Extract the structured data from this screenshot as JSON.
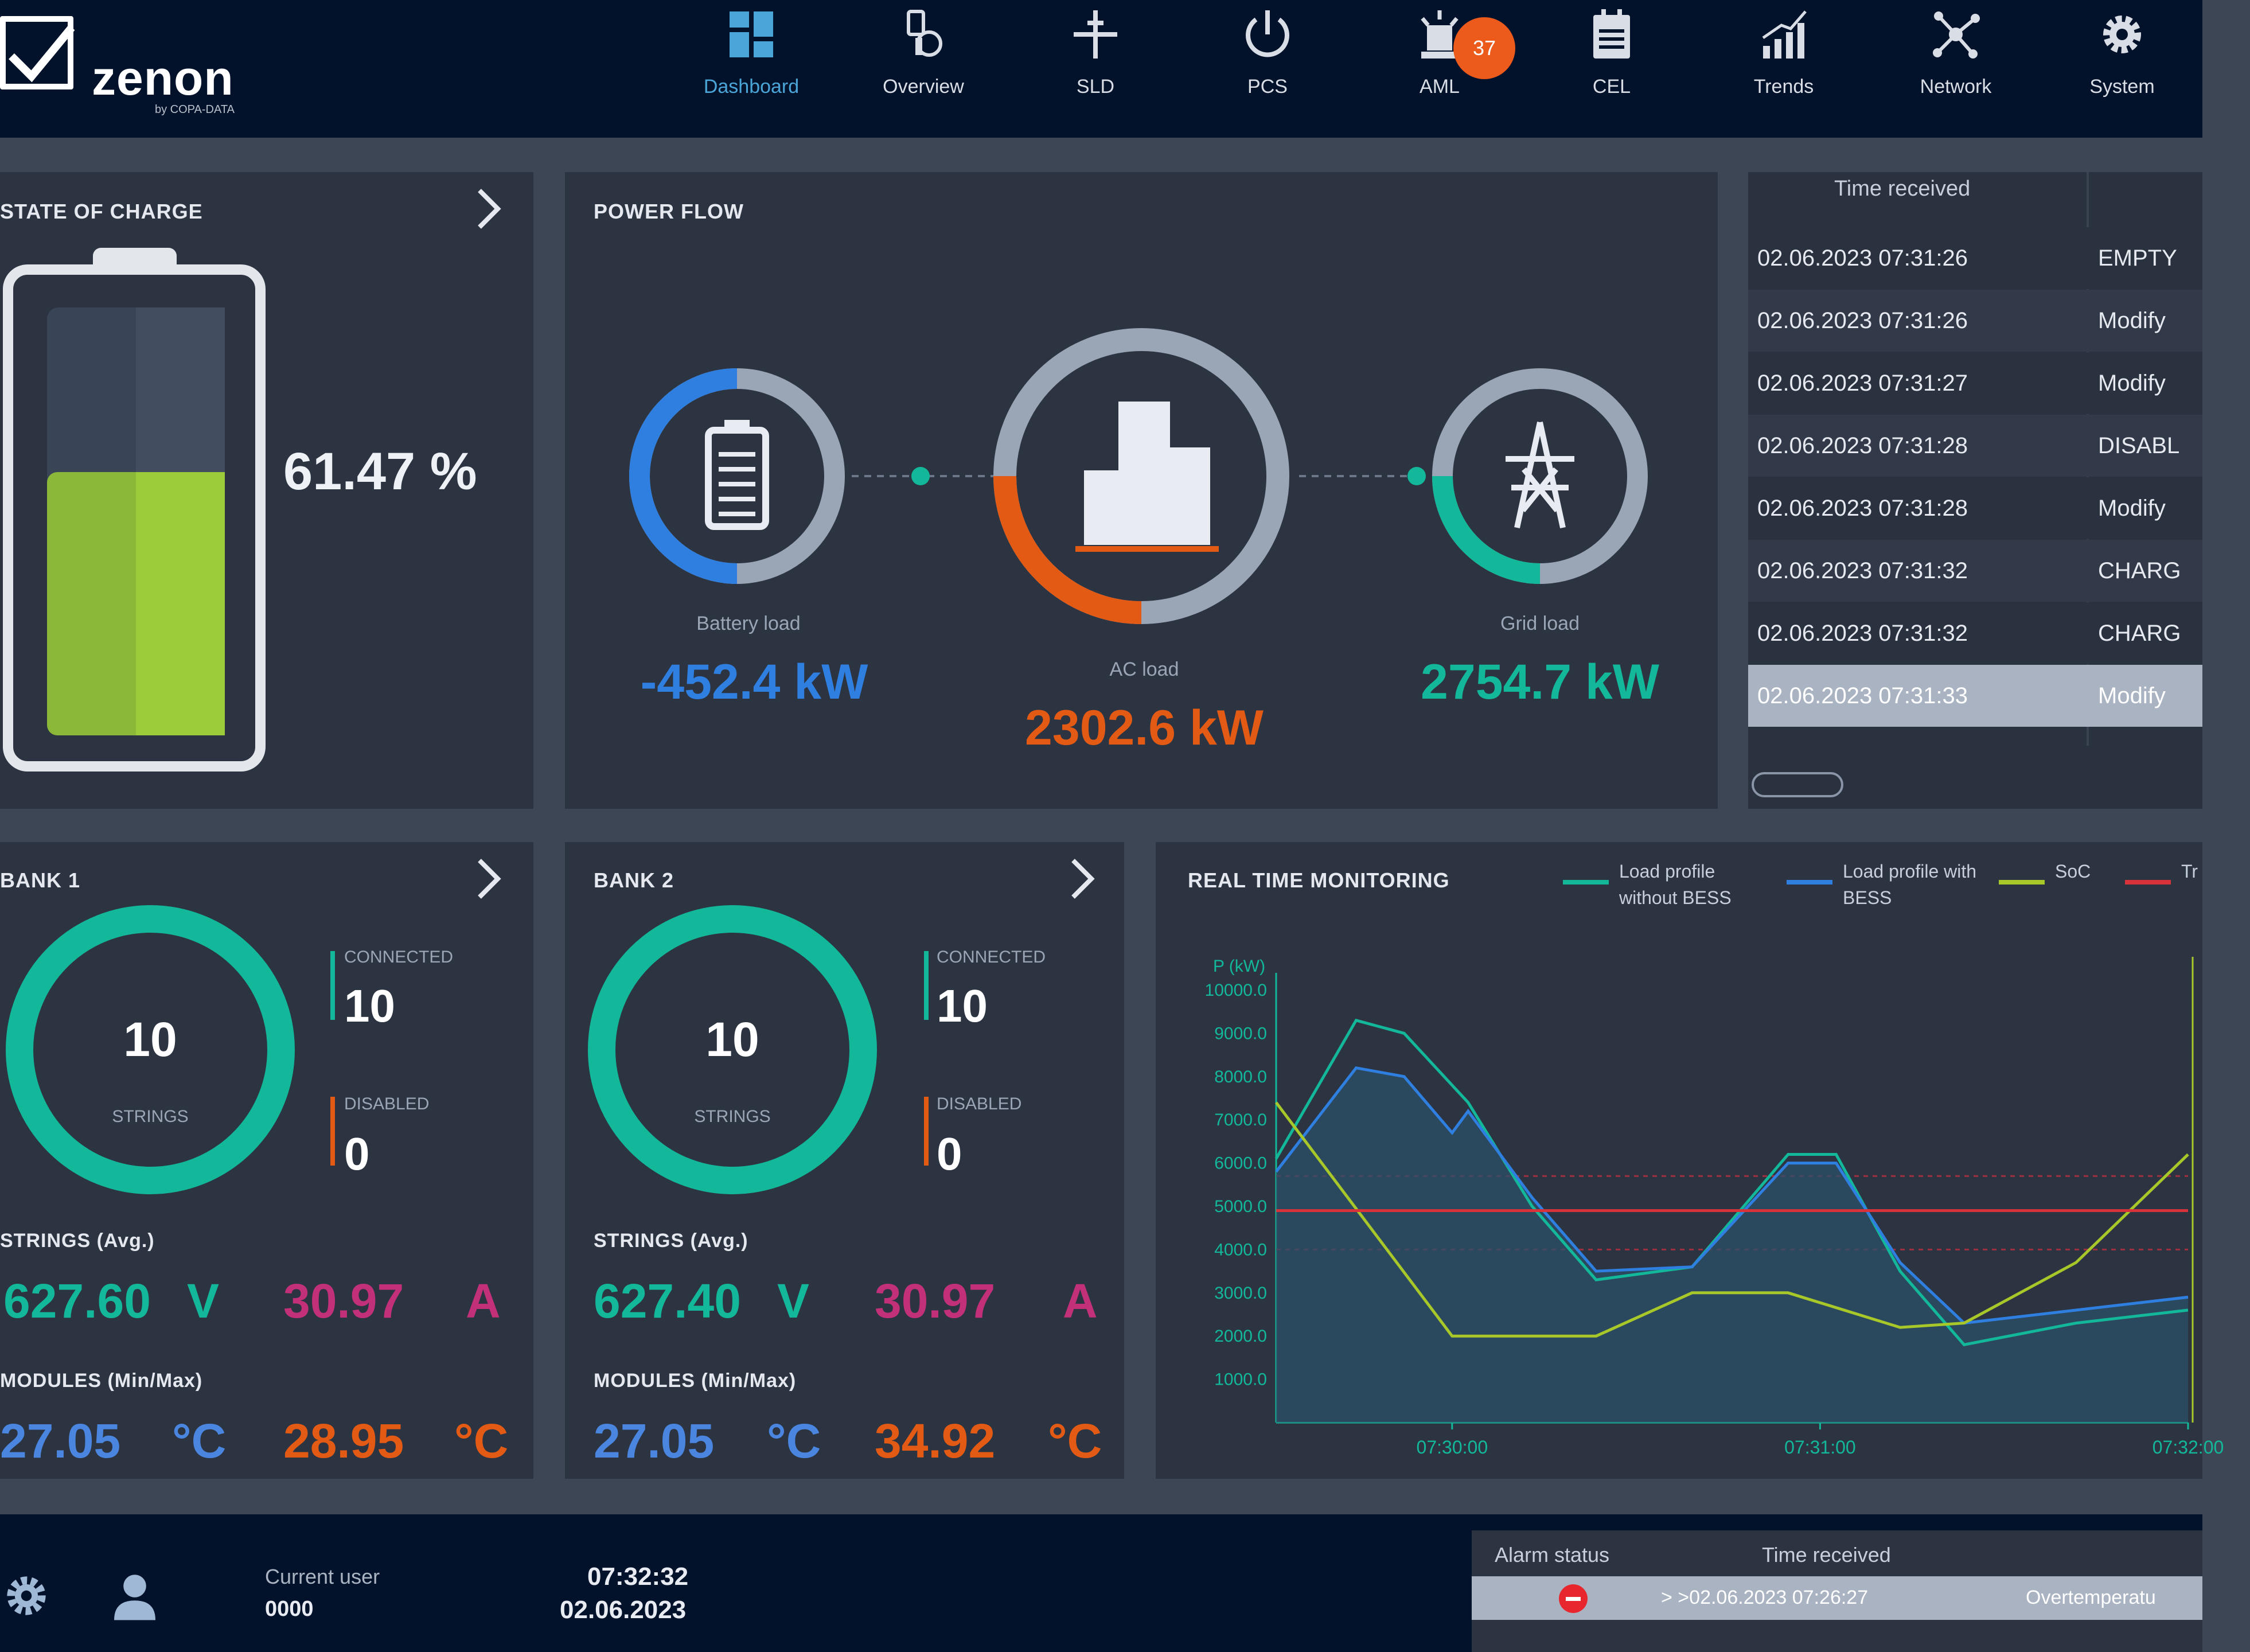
{
  "app": {
    "logo_text": "zenon",
    "logo_sub": "by COPA-DATA"
  },
  "nav": [
    {
      "label": "Dashboard",
      "icon": "dashboard-icon",
      "active": true
    },
    {
      "label": "Overview",
      "icon": "overview-icon"
    },
    {
      "label": "SLD",
      "icon": "sld-icon"
    },
    {
      "label": "PCS",
      "icon": "power-icon"
    },
    {
      "label": "AML",
      "icon": "alarm-icon"
    },
    {
      "label": "CEL",
      "icon": "event-list-icon"
    },
    {
      "label": "Trends",
      "icon": "trends-icon"
    },
    {
      "label": "Network",
      "icon": "network-icon"
    },
    {
      "label": "System",
      "icon": "gear-icon"
    }
  ],
  "alarm_badge": "37",
  "state_of_charge": {
    "title": "STATE OF CHARGE",
    "value": "61.47 %",
    "level": 0.6147
  },
  "power_flow": {
    "title": "POWER FLOW",
    "battery": {
      "label": "Battery load",
      "value": "-452.4 kW"
    },
    "ac": {
      "label": "AC load",
      "value": "2302.6 kW"
    },
    "grid": {
      "label": "Grid load",
      "value": "2754.7 kW"
    }
  },
  "event_list": {
    "header": "Time received",
    "rows": [
      {
        "time": "02.06.2023 07:31:26",
        "status": "EMPTY"
      },
      {
        "time": "02.06.2023 07:31:26",
        "status": "Modify"
      },
      {
        "time": "02.06.2023 07:31:27",
        "status": "Modify"
      },
      {
        "time": "02.06.2023 07:31:28",
        "status": "DISABL"
      },
      {
        "time": "02.06.2023 07:31:28",
        "status": "Modify"
      },
      {
        "time": "02.06.2023 07:31:32",
        "status": "CHARG"
      },
      {
        "time": "02.06.2023 07:31:32",
        "status": "CHARG"
      },
      {
        "time": "02.06.2023 07:31:33",
        "status": "Modify"
      }
    ]
  },
  "banks": [
    {
      "title": "BANK 1",
      "strings": "10",
      "strings_label": "STRINGS",
      "connected_label": "CONNECTED",
      "connected": "10",
      "disabled_label": "DISABLED",
      "disabled": "0",
      "strings_avg_label": "STRINGS (Avg.)",
      "voltage": "627.60",
      "voltage_unit": "V",
      "current": "30.97",
      "current_unit": "A",
      "modules_label": "MODULES (Min/Max)",
      "temp_min": "27.05",
      "temp_max": "28.95",
      "temp_unit": "°C"
    },
    {
      "title": "BANK 2",
      "strings": "10",
      "strings_label": "STRINGS",
      "connected_label": "CONNECTED",
      "connected": "10",
      "disabled_label": "DISABLED",
      "disabled": "0",
      "strings_avg_label": "STRINGS (Avg.)",
      "voltage": "627.40",
      "voltage_unit": "V",
      "current": "30.97",
      "current_unit": "A",
      "modules_label": "MODULES (Min/Max)",
      "temp_min": "27.05",
      "temp_max": "34.92",
      "temp_unit": "°C"
    }
  ],
  "chart_data": {
    "type": "line",
    "title": "REAL TIME MONITORING",
    "ylabel": "P (kW)",
    "ylim": [
      0,
      10000
    ],
    "yticks": [
      "10000.0",
      "9000.0",
      "8000.0",
      "7000.0",
      "6000.0",
      "5000.0",
      "4000.0",
      "3000.0",
      "2000.0",
      "1000.0"
    ],
    "xticks": [
      "07:30:00",
      "07:31:00",
      "07:32:00"
    ],
    "legend": [
      {
        "name": "Load profile without BESS",
        "color": "#13b89a"
      },
      {
        "name": "Load profile with BESS",
        "color": "#2f7fe0"
      },
      {
        "name": "SoC",
        "color": "#a8c82a"
      },
      {
        "name": "Tr",
        "color": "#d8323a"
      }
    ],
    "series": [
      {
        "name": "Load profile without BESS",
        "color": "#13b89a",
        "points": [
          [
            0,
            6100
          ],
          [
            0.5,
            9300
          ],
          [
            0.8,
            9000
          ],
          [
            1.2,
            7400
          ],
          [
            1.6,
            5000
          ],
          [
            2,
            3300
          ],
          [
            2.6,
            3600
          ],
          [
            3.2,
            6200
          ],
          [
            3.5,
            6200
          ],
          [
            3.9,
            3500
          ],
          [
            4.3,
            1800
          ],
          [
            5,
            2300
          ],
          [
            5.7,
            2600
          ]
        ]
      },
      {
        "name": "Load profile with BESS",
        "color": "#2f7fe0",
        "points": [
          [
            0,
            5800
          ],
          [
            0.5,
            8200
          ],
          [
            0.8,
            8000
          ],
          [
            1.1,
            6700
          ],
          [
            1.2,
            7200
          ],
          [
            1.6,
            5200
          ],
          [
            2,
            3500
          ],
          [
            2.6,
            3600
          ],
          [
            3.2,
            6000
          ],
          [
            3.5,
            6000
          ],
          [
            3.9,
            3700
          ],
          [
            4.3,
            2300
          ],
          [
            5,
            2600
          ],
          [
            5.7,
            2900
          ]
        ]
      },
      {
        "name": "SoC",
        "color": "#a8c82a",
        "points": [
          [
            0,
            7400
          ],
          [
            1.1,
            2000
          ],
          [
            2,
            2000
          ],
          [
            2.6,
            3000
          ],
          [
            3.2,
            3000
          ],
          [
            3.9,
            2200
          ],
          [
            4.3,
            2300
          ],
          [
            5,
            3700
          ],
          [
            5.7,
            6200
          ]
        ]
      },
      {
        "name": "Tr",
        "color": "#d8323a",
        "points": [
          [
            0,
            4900
          ],
          [
            5.7,
            4900
          ]
        ]
      }
    ]
  },
  "footer": {
    "current_user_label": "Current user",
    "current_user": "0000",
    "time": "07:32:32",
    "date": "02.06.2023",
    "alarm_status_header": "Alarm status",
    "alarm_time_header": "Time received",
    "alarm_row_time": "> >02.06.2023 07:26:27",
    "alarm_row_text": "Overtemperatu"
  }
}
